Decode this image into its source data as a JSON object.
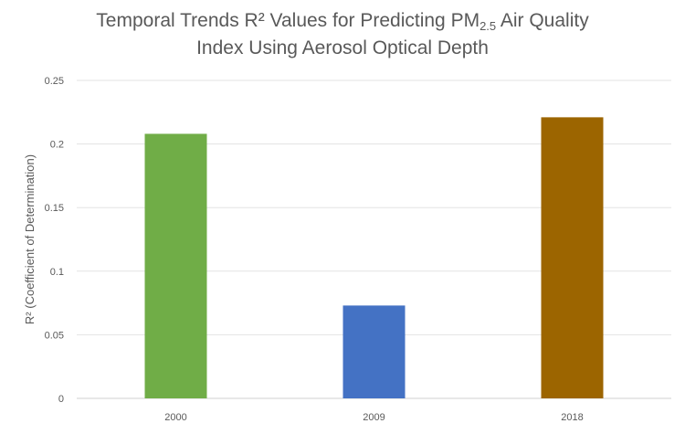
{
  "chart_data": {
    "type": "bar",
    "title": {
      "line1_prefix": "Temporal Trends R² Values for Predicting PM",
      "line1_subscript": "2.5",
      "line1_suffix": " Air Quality",
      "line2": "Index Using Aerosol Optical Depth"
    },
    "xlabel": "",
    "ylabel": "R² (Coefficient of Determination)",
    "categories": [
      "2000",
      "2009",
      "2018"
    ],
    "values": [
      0.208,
      0.073,
      0.221
    ],
    "colors": [
      "#70ad47",
      "#4472c4",
      "#9c6500"
    ],
    "ylim": [
      0,
      0.25
    ],
    "yticks": [
      0,
      0.05,
      0.1,
      0.15,
      0.2,
      0.25
    ],
    "ytick_labels": [
      "0",
      "0.05",
      "0.1",
      "0.15",
      "0.2",
      "0.25"
    ],
    "grid": true,
    "legend": "none"
  }
}
